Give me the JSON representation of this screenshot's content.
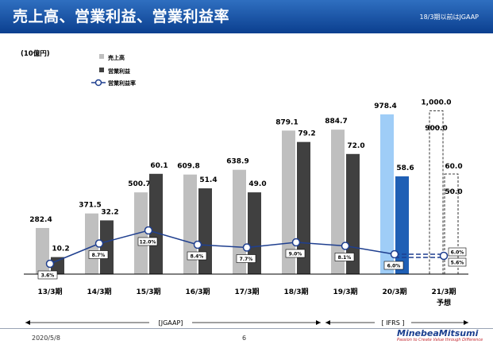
{
  "header": {
    "title": "売上高、営業利益、営業利益率",
    "note": "18/3期以前はJGAAP"
  },
  "footer": {
    "date": "2020/5/8",
    "page": "6",
    "logo": "MinebeaMitsumi",
    "tagline": "Passion to Create Value through Difference"
  },
  "chart_data": {
    "type": "bar",
    "unit_label": "(10億円)",
    "categories": [
      "13/3期",
      "14/3期",
      "15/3期",
      "16/3期",
      "17/3期",
      "18/3期",
      "19/3期",
      "20/3期",
      "21/3期"
    ],
    "category_sublabels": [
      "",
      "",
      "",
      "",
      "",
      "",
      "",
      "",
      "予想"
    ],
    "series": [
      {
        "name": "売上高",
        "kind": "bar",
        "color": "#bfbfbf",
        "values": [
          282.4,
          371.5,
          500.7,
          609.8,
          638.9,
          879.1,
          884.7,
          978.4,
          null
        ],
        "labels": [
          "282.4",
          "371.5",
          "500.7",
          "609.8",
          "638.9",
          "879.1",
          "884.7",
          "978.4",
          null
        ]
      },
      {
        "name": "営業利益",
        "kind": "bar",
        "color": "#404040",
        "values": [
          10.2,
          32.2,
          60.1,
          51.4,
          49.0,
          79.2,
          72.0,
          58.6,
          null
        ],
        "labels": [
          "10.2",
          "32.2",
          "60.1",
          "51.4",
          "49.0",
          "79.2",
          "72.0",
          "58.6",
          null
        ]
      },
      {
        "name": "営業利益率",
        "kind": "line",
        "color": "#1f3f8f",
        "unit": "%",
        "values": [
          3.6,
          8.7,
          12.0,
          8.4,
          7.7,
          9.0,
          8.1,
          6.0,
          6.0
        ],
        "labels": [
          "3.6%",
          "8.7%",
          "12.0%",
          "8.4%",
          "7.7%",
          "9.0%",
          "8.1%",
          "6.0%",
          "6.0%"
        ]
      }
    ],
    "highlight": {
      "index": 7,
      "sales_color": "#9fcdf7",
      "op_color": "#1f5fb5"
    },
    "forecast": [
      {
        "label": "1,000.0",
        "value": 1000.0
      },
      {
        "label": "900.0",
        "value": 900.0
      },
      {
        "label": "60.0",
        "value": 60.0
      },
      {
        "label": "50.0",
        "value": 50.0
      }
    ],
    "forecast_margin_labels": [
      "6.0%",
      "5.6%"
    ],
    "eras": [
      {
        "label": "[JGAAP]"
      },
      {
        "label": "[ IFRS ]"
      }
    ],
    "legend_position": "top-left",
    "grid": false
  }
}
